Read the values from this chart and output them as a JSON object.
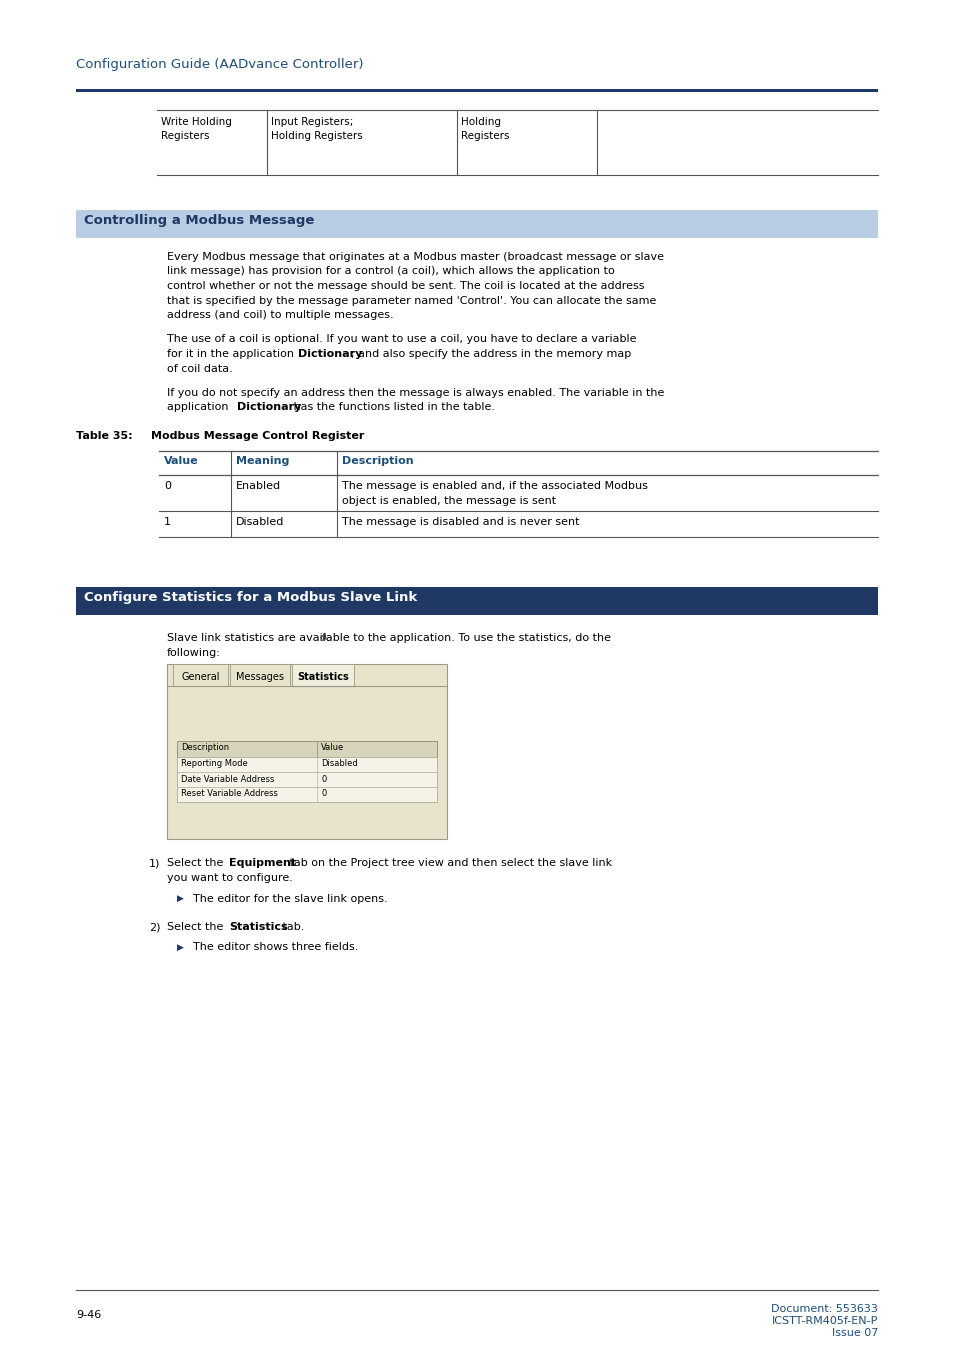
{
  "page_bg": "#ffffff",
  "header_text": "Configuration Guide (AADvance Controller)",
  "header_color": "#1f4e79",
  "header_line_color": "#1f3864",
  "section1_bg": "#b8cce4",
  "section1_text": "Controlling a Modbus Message",
  "section1_text_color": "#1f3864",
  "section2_bg": "#1f3864",
  "section2_text": "Configure Statistics for a Modbus Slave Link",
  "section2_text_color": "#ffffff",
  "table35_header_color": "#1f4e79",
  "footer_left": "9-46",
  "footer_right1": "Document: 553633",
  "footer_right2": "ICSTT-RM405f-EN-P",
  "footer_right3": "Issue 07",
  "footer_color": "#1f4e79",
  "screenshot_bg": "#e8e4cc",
  "screenshot_inner_bg": "#f5f3e8",
  "screenshot_header_bg": "#d8d4bc"
}
